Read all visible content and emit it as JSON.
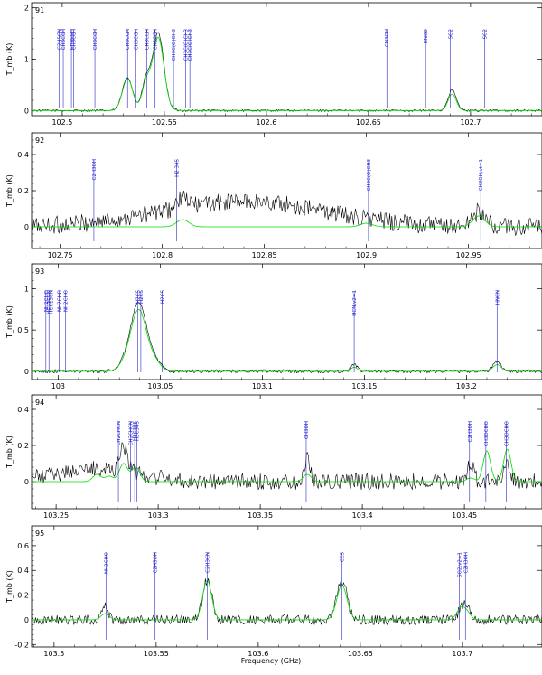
{
  "figure": {
    "xlabel": "Frequency (GHz)",
    "ylabel": "T_mb (K)"
  },
  "colors": {
    "observed": "#000000",
    "model": "#00dd00",
    "line_marker": "#2b2bbf",
    "label": "#1a1ad1"
  },
  "chart_data": [
    {
      "type": "line",
      "panel_label": "91",
      "xlim": [
        102.485,
        102.735
      ],
      "ylim": [
        -0.1,
        2.1
      ],
      "yticks": [
        0,
        1,
        2
      ],
      "xticks": [
        102.5,
        102.55,
        102.6,
        102.65,
        102.7
      ],
      "noise": 0.02,
      "model_peaks": [
        [
          102.532,
          0.62,
          0.0025
        ],
        [
          102.541,
          0.5,
          0.002
        ],
        [
          102.547,
          1.42,
          0.0028
        ],
        [
          102.691,
          0.32,
          0.002
        ]
      ],
      "obs_peaks": [
        [
          102.532,
          0.65,
          0.0025
        ],
        [
          102.541,
          0.55,
          0.002
        ],
        [
          102.547,
          1.5,
          0.0028
        ],
        [
          102.691,
          0.4,
          0.002
        ]
      ],
      "lines": [
        {
          "x": 102.4985,
          "label": "C2H5CN"
        },
        {
          "x": 102.5005,
          "label": "CH3CCH"
        },
        {
          "x": 102.5045,
          "label": "CH3CCH"
        },
        {
          "x": 102.5055,
          "label": "CH3CCH"
        },
        {
          "x": 102.516,
          "label": "CH3CCH"
        },
        {
          "x": 102.532,
          "label": "CH3CCH"
        },
        {
          "x": 102.536,
          "label": "CH3CCH"
        },
        {
          "x": 102.5415,
          "label": "CH3CCH"
        },
        {
          "x": 102.5455,
          "label": "CH3CCH"
        },
        {
          "x": 102.5545,
          "label": "CH3C(O)CH3"
        },
        {
          "x": 102.5605,
          "label": "CH3C(O)CH3"
        },
        {
          "x": 102.5625,
          "label": "CH3C(O)CH3"
        },
        {
          "x": 102.659,
          "label": "CH3OH"
        },
        {
          "x": 102.678,
          "label": "HNCO"
        },
        {
          "x": 102.69,
          "label": "SO2"
        },
        {
          "x": 102.707,
          "label": "SO2"
        }
      ]
    },
    {
      "type": "line",
      "panel_label": "92",
      "xlim": [
        102.736,
        102.986
      ],
      "ylim": [
        -0.12,
        0.52
      ],
      "yticks": [
        0,
        0.2,
        0.4
      ],
      "xticks": [
        102.75,
        102.8,
        102.85,
        102.9,
        102.95
      ],
      "noise": 0.05,
      "model_peaks": [
        [
          102.81,
          0.04,
          0.003
        ],
        [
          102.9,
          0.02,
          0.003
        ],
        [
          102.955,
          0.06,
          0.003
        ]
      ],
      "obs_peaks": [
        [
          102.81,
          0.05,
          0.003
        ],
        [
          102.955,
          0.08,
          0.003
        ]
      ],
      "bump": [
        102.84,
        0.14,
        0.04
      ],
      "lines": [
        {
          "x": 102.7665,
          "label": "C2H3OH"
        },
        {
          "x": 102.807,
          "label": "H2 34S"
        },
        {
          "x": 102.901,
          "label": "CH3C(O)CH3"
        },
        {
          "x": 102.956,
          "label": "CH3OH,vt=1"
        }
      ]
    },
    {
      "type": "line",
      "panel_label": "93",
      "xlim": [
        102.987,
        103.237
      ],
      "ylim": [
        -0.1,
        1.3
      ],
      "yticks": [
        0,
        0.5,
        1
      ],
      "xticks": [
        103,
        103.05,
        103.1,
        103.15,
        103.2
      ],
      "noise": 0.02,
      "model_peaks": [
        [
          103.036,
          0.22,
          0.004
        ],
        [
          103.04,
          0.6,
          0.0035
        ],
        [
          103.047,
          0.12,
          0.003
        ],
        [
          103.145,
          0.05,
          0.0015
        ],
        [
          103.215,
          0.08,
          0.002
        ]
      ],
      "obs_peaks": [
        [
          103.036,
          0.25,
          0.004
        ],
        [
          103.04,
          0.66,
          0.0035
        ],
        [
          103.047,
          0.14,
          0.003
        ],
        [
          103.145,
          0.08,
          0.0015
        ],
        [
          103.215,
          0.12,
          0.002
        ]
      ],
      "lines": [
        {
          "x": 102.994,
          "label": "NH2CHO"
        },
        {
          "x": 102.9955,
          "label": "HC13CCN"
        },
        {
          "x": 102.9965,
          "label": "HCC13CN"
        },
        {
          "x": 103.0005,
          "label": "NH2CHO"
        },
        {
          "x": 103.0035,
          "label": "NH2CHO"
        },
        {
          "x": 103.039,
          "label": "H2CS"
        },
        {
          "x": 103.0405,
          "label": "H2CS"
        },
        {
          "x": 103.051,
          "label": "H2CS"
        },
        {
          "x": 103.145,
          "label": "HCN,v2=1"
        },
        {
          "x": 103.215,
          "label": "HNCN"
        }
      ]
    },
    {
      "type": "line",
      "panel_label": "94",
      "xlim": [
        103.238,
        103.488
      ],
      "ylim": [
        -0.15,
        0.48
      ],
      "yticks": [
        0,
        0.2,
        0.4
      ],
      "xticks": [
        103.25,
        103.3,
        103.35,
        103.4,
        103.45
      ],
      "noise": 0.045,
      "model_peaks": [
        [
          103.27,
          0.04,
          0.002
        ],
        [
          103.276,
          0.03,
          0.002
        ],
        [
          103.283,
          0.1,
          0.002
        ],
        [
          103.289,
          0.08,
          0.002
        ],
        [
          103.373,
          0.04,
          0.002
        ],
        [
          103.453,
          0.02,
          0.002
        ],
        [
          103.461,
          0.17,
          0.0018
        ],
        [
          103.471,
          0.18,
          0.0018
        ]
      ],
      "obs_peaks": [
        [
          103.283,
          0.14,
          0.002
        ],
        [
          103.373,
          0.14,
          0.0015
        ],
        [
          103.453,
          0.1,
          0.0015
        ],
        [
          103.471,
          0.12,
          0.0015
        ]
      ],
      "bump": [
        103.27,
        0.07,
        0.02
      ],
      "lines": [
        {
          "x": 103.2805,
          "label": "CH2CHCN"
        },
        {
          "x": 103.2865,
          "label": "CH2CHCN"
        },
        {
          "x": 103.2885,
          "label": "H2C34S"
        },
        {
          "x": 103.2895,
          "label": "H2C34S"
        },
        {
          "x": 103.3725,
          "label": "CH3OH"
        },
        {
          "x": 103.4525,
          "label": "C2H3OH"
        },
        {
          "x": 103.4605,
          "label": "CH3OCHO"
        },
        {
          "x": 103.4705,
          "label": "CH3OCHO"
        }
      ]
    },
    {
      "type": "line",
      "panel_label": "95",
      "xlim": [
        103.489,
        103.739
      ],
      "ylim": [
        -0.22,
        0.76
      ],
      "yticks": [
        -0.2,
        0,
        0.2,
        0.4,
        0.6
      ],
      "xticks": [
        103.5,
        103.55,
        103.6,
        103.65,
        103.7
      ],
      "noise": 0.04,
      "model_peaks": [
        [
          103.525,
          0.05,
          0.002
        ],
        [
          103.575,
          0.32,
          0.0022
        ],
        [
          103.641,
          0.28,
          0.0025
        ],
        [
          103.699,
          0.08,
          0.002
        ],
        [
          103.702,
          0.06,
          0.002
        ]
      ],
      "obs_peaks": [
        [
          103.525,
          0.12,
          0.0015
        ],
        [
          103.575,
          0.32,
          0.0022
        ],
        [
          103.641,
          0.31,
          0.0025
        ],
        [
          103.701,
          0.12,
          0.0025
        ]
      ],
      "lines": [
        {
          "x": 103.5255,
          "label": "NH2CHO"
        },
        {
          "x": 103.5495,
          "label": "C2H3OH"
        },
        {
          "x": 103.575,
          "label": "C2H3CN"
        },
        {
          "x": 103.641,
          "label": "CCS"
        },
        {
          "x": 103.6985,
          "label": "SO2,v2=1"
        },
        {
          "x": 103.7015,
          "label": "C2H3OH"
        }
      ]
    }
  ]
}
